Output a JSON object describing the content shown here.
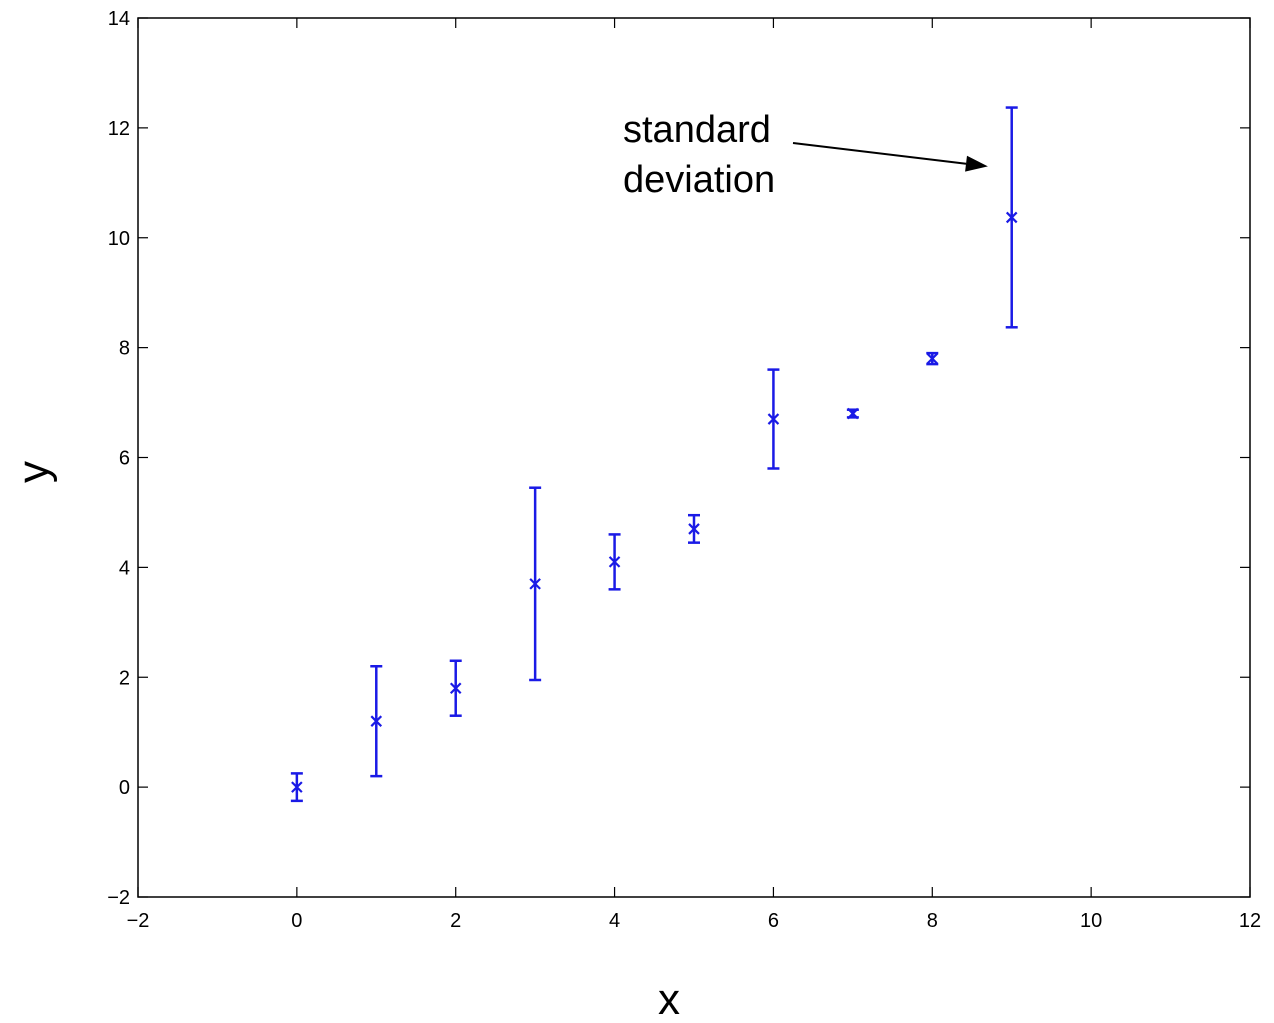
{
  "chart_data": {
    "type": "scatter",
    "title": "",
    "xlabel": "x",
    "ylabel": "y",
    "xlim": [
      -2,
      12
    ],
    "ylim": [
      -2,
      14
    ],
    "xticks": [
      -2,
      0,
      2,
      4,
      6,
      8,
      10,
      12
    ],
    "yticks": [
      -2,
      0,
      2,
      4,
      6,
      8,
      10,
      12,
      14
    ],
    "xtick_labels": [
      "−2",
      "0",
      "2",
      "4",
      "6",
      "8",
      "10",
      "12"
    ],
    "ytick_labels": [
      "−2",
      "0",
      "2",
      "4",
      "6",
      "8",
      "10",
      "12",
      "14"
    ],
    "grid": false,
    "marker": "x",
    "series_color": "#1a1ae6",
    "points": [
      {
        "x": 0,
        "y": 0.0,
        "std": 0.25
      },
      {
        "x": 1,
        "y": 1.2,
        "std": 1.0
      },
      {
        "x": 2,
        "y": 1.8,
        "std": 0.5
      },
      {
        "x": 3,
        "y": 3.7,
        "std": 1.75
      },
      {
        "x": 4,
        "y": 4.1,
        "std": 0.5
      },
      {
        "x": 5,
        "y": 4.7,
        "std": 0.25
      },
      {
        "x": 6,
        "y": 6.7,
        "std": 0.9
      },
      {
        "x": 7,
        "y": 6.8,
        "std": 0.07
      },
      {
        "x": 8,
        "y": 7.8,
        "std": 0.1
      },
      {
        "x": 9,
        "y": 10.37,
        "std": 2.0
      }
    ],
    "annotation": {
      "lines": [
        "standard",
        "deviation"
      ],
      "arrow_target": {
        "x": 8.7,
        "y": 11.3
      }
    }
  }
}
